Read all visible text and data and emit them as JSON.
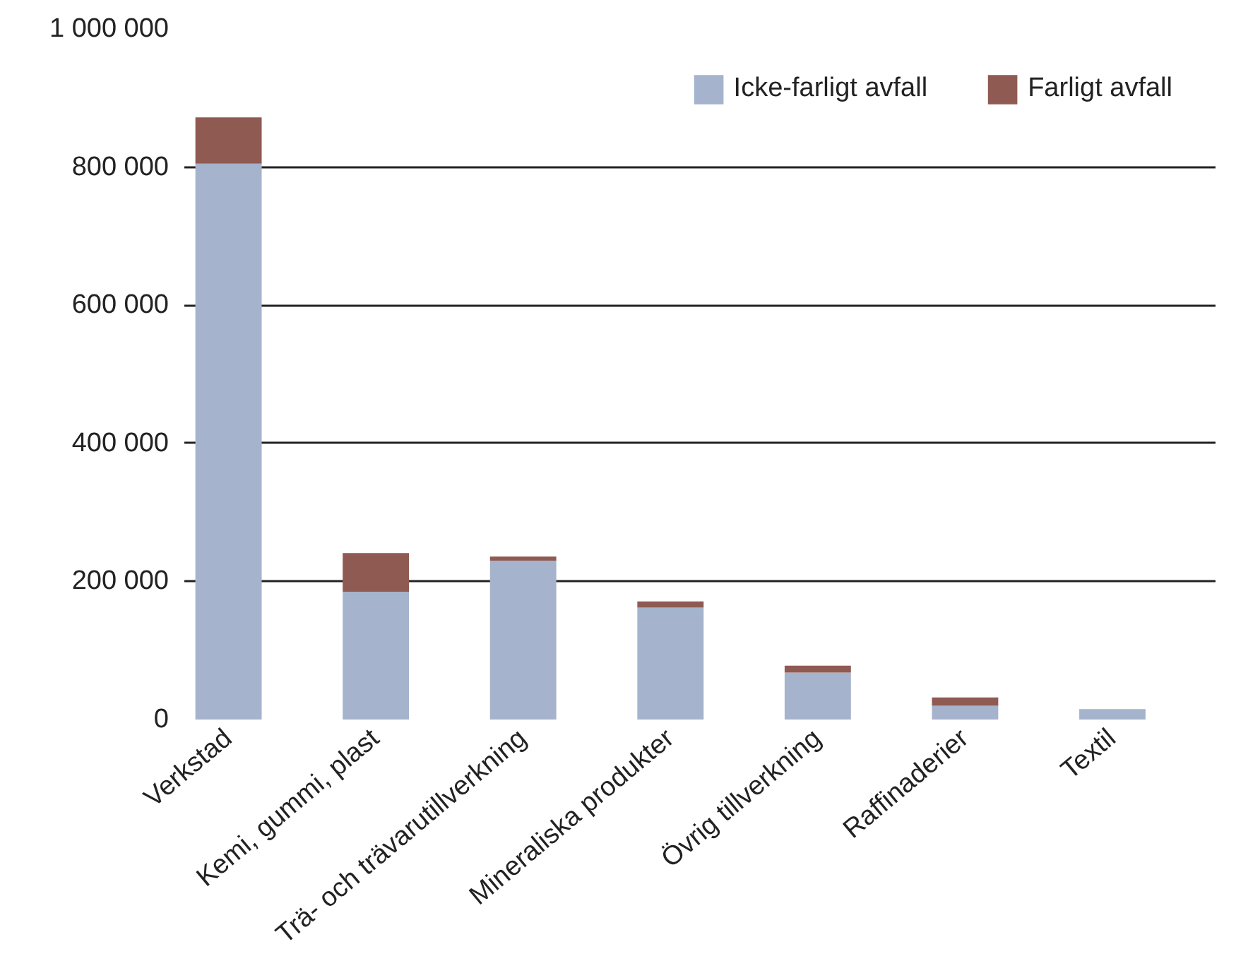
{
  "chart_data": {
    "type": "bar",
    "stacked": true,
    "categories": [
      "Verkstad",
      "Kemi, gummi, plast",
      "Trä- och trävarutillverkning",
      "Mineraliska produkter",
      "Övrig tillverkning",
      "Raffinaderier",
      "Textil"
    ],
    "series": [
      {
        "name": "Icke-farligt avfall",
        "color": "#a5b3cc",
        "values": [
          805000,
          185000,
          230000,
          162000,
          68000,
          20000,
          15000
        ]
      },
      {
        "name": "Farligt avfall",
        "color": "#8f5a52",
        "values": [
          67000,
          56000,
          6000,
          9000,
          10000,
          12000,
          0
        ]
      }
    ],
    "ylim": [
      0,
      1000000
    ],
    "yticks": [
      {
        "value": 0,
        "label": "0"
      },
      {
        "value": 200000,
        "label": "200 000"
      },
      {
        "value": 400000,
        "label": "400 000"
      },
      {
        "value": 600000,
        "label": "600 000"
      },
      {
        "value": 800000,
        "label": "800 000"
      },
      {
        "value": 1000000,
        "label": "1 000 000"
      }
    ],
    "grid": "y",
    "legend": "top right"
  }
}
